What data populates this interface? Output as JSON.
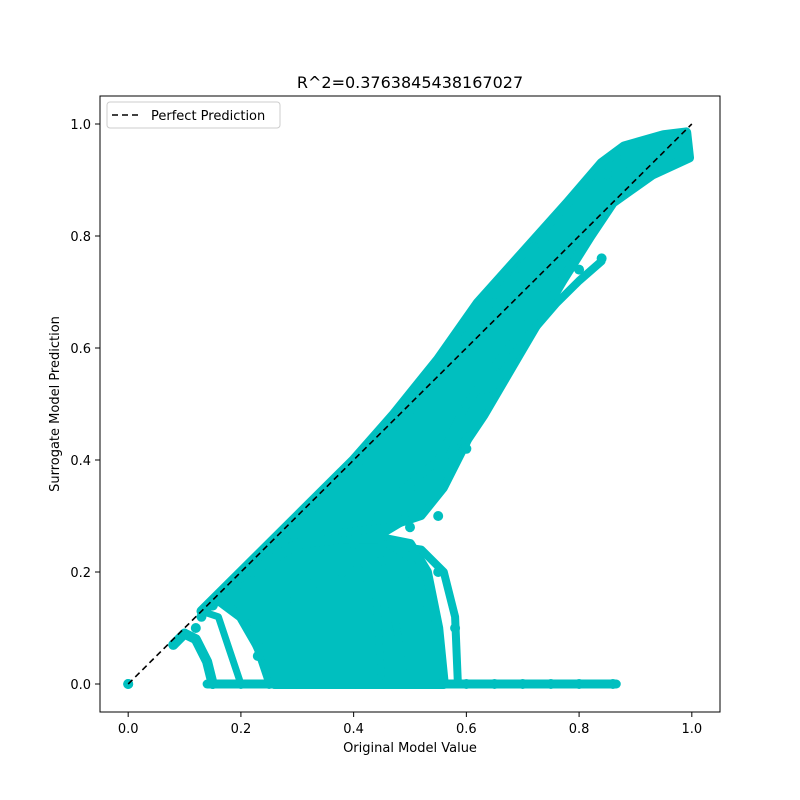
{
  "chart_data": {
    "type": "scatter",
    "title": "R^2=0.3763845438167027",
    "xlabel": "Original Model Value",
    "ylabel": "Surrogate Model Prediction",
    "xlim": [
      -0.05,
      1.05
    ],
    "ylim": [
      -0.05,
      1.05
    ],
    "x_ticks": [
      "0.0",
      "0.2",
      "0.4",
      "0.6",
      "0.8",
      "1.0"
    ],
    "y_ticks": [
      "0.0",
      "0.2",
      "0.4",
      "0.6",
      "0.8",
      "1.0"
    ],
    "grid": false,
    "legend": {
      "position": "top-left",
      "entries": [
        "Perfect Prediction"
      ]
    },
    "colors": {
      "points": "#00bfbf",
      "reference_line": "#000000"
    },
    "series": [
      {
        "name": "Perfect Prediction",
        "kind": "line",
        "style": "dashed",
        "x": [
          0.0,
          1.0
        ],
        "y": [
          0.0,
          1.0
        ]
      },
      {
        "kind": "scatter",
        "points": [
          [
            0.0,
            0.0
          ],
          [
            0.08,
            0.07
          ],
          [
            0.1,
            0.09
          ],
          [
            0.12,
            0.1
          ],
          [
            0.13,
            0.12
          ],
          [
            0.15,
            0.14
          ],
          [
            0.15,
            0.0
          ],
          [
            0.18,
            0.16
          ],
          [
            0.2,
            0.19
          ],
          [
            0.2,
            0.0
          ],
          [
            0.22,
            0.2
          ],
          [
            0.25,
            0.24
          ],
          [
            0.25,
            0.0
          ],
          [
            0.28,
            0.26
          ],
          [
            0.3,
            0.29
          ],
          [
            0.3,
            0.0
          ],
          [
            0.33,
            0.3
          ],
          [
            0.35,
            0.34
          ],
          [
            0.35,
            0.0
          ],
          [
            0.38,
            0.36
          ],
          [
            0.4,
            0.39
          ],
          [
            0.4,
            0.0
          ],
          [
            0.42,
            0.4
          ],
          [
            0.45,
            0.44
          ],
          [
            0.45,
            0.0
          ],
          [
            0.48,
            0.46
          ],
          [
            0.5,
            0.49
          ],
          [
            0.5,
            0.0
          ],
          [
            0.52,
            0.52
          ],
          [
            0.55,
            0.55
          ],
          [
            0.55,
            0.0
          ],
          [
            0.58,
            0.58
          ],
          [
            0.6,
            0.62
          ],
          [
            0.6,
            0.0
          ],
          [
            0.62,
            0.64
          ],
          [
            0.65,
            0.68
          ],
          [
            0.65,
            0.0
          ],
          [
            0.68,
            0.72
          ],
          [
            0.7,
            0.74
          ],
          [
            0.7,
            0.0
          ],
          [
            0.72,
            0.78
          ],
          [
            0.75,
            0.8
          ],
          [
            0.75,
            0.0
          ],
          [
            0.78,
            0.84
          ],
          [
            0.8,
            0.87
          ],
          [
            0.8,
            0.0
          ],
          [
            0.82,
            0.89
          ],
          [
            0.85,
            0.91
          ],
          [
            0.86,
            0.0
          ],
          [
            0.88,
            0.93
          ],
          [
            0.9,
            0.95
          ],
          [
            0.92,
            0.96
          ],
          [
            0.95,
            0.97
          ],
          [
            0.97,
            0.98
          ],
          [
            0.99,
            0.98
          ],
          [
            0.99,
            0.94
          ],
          [
            0.5,
            0.28
          ],
          [
            0.55,
            0.3
          ],
          [
            0.6,
            0.42
          ],
          [
            0.65,
            0.52
          ],
          [
            0.7,
            0.62
          ],
          [
            0.75,
            0.68
          ],
          [
            0.8,
            0.74
          ],
          [
            0.84,
            0.76
          ],
          [
            0.55,
            0.2
          ],
          [
            0.58,
            0.1
          ],
          [
            0.45,
            0.22
          ],
          [
            0.47,
            0.12
          ],
          [
            0.3,
            0.1
          ],
          [
            0.35,
            0.15
          ],
          [
            0.4,
            0.25
          ],
          [
            0.43,
            0.3
          ],
          [
            0.5,
            0.35
          ],
          [
            0.55,
            0.42
          ],
          [
            0.6,
            0.5
          ],
          [
            0.38,
            0.2
          ],
          [
            0.33,
            0.18
          ],
          [
            0.28,
            0.15
          ],
          [
            0.25,
            0.1
          ],
          [
            0.23,
            0.05
          ]
        ]
      }
    ]
  }
}
